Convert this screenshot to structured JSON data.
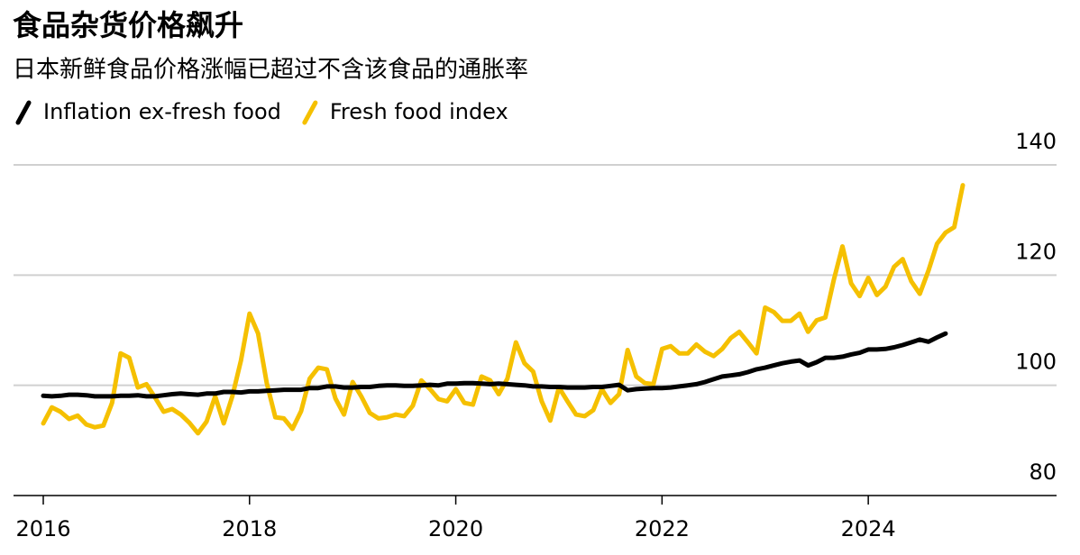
{
  "chart_data": {
    "type": "line",
    "title": "食品杂货价格飙升",
    "subtitle": "日本新鲜食品价格涨幅已超过不含该食品的通胀率",
    "categories": [
      "2016",
      null,
      null,
      null,
      null,
      null,
      null,
      null,
      null,
      null,
      null,
      null,
      null,
      null,
      null,
      null,
      null,
      null,
      null,
      null,
      null,
      null,
      null,
      null,
      "2018",
      null,
      null,
      null,
      null,
      null,
      null,
      null,
      null,
      null,
      null,
      null,
      null,
      null,
      null,
      null,
      null,
      null,
      null,
      null,
      null,
      null,
      null,
      null,
      "2020",
      null,
      null,
      null,
      null,
      null,
      null,
      null,
      null,
      null,
      null,
      null,
      null,
      null,
      null,
      null,
      null,
      null,
      null,
      null,
      null,
      null,
      null,
      null,
      "2022",
      null,
      null,
      null,
      null,
      null,
      null,
      null,
      null,
      null,
      null,
      null,
      null,
      null,
      null,
      null,
      null,
      null,
      null,
      null,
      null,
      null,
      null,
      null,
      "2024",
      null,
      null,
      null,
      null,
      null,
      null,
      null,
      null,
      null,
      null,
      null
    ],
    "series": [
      {
        "name": "Inflation ex-fresh food",
        "color": "#000000",
        "values": [
          98.1,
          98.0,
          98.1,
          98.3,
          98.3,
          98.2,
          98.0,
          98.0,
          98.0,
          98.1,
          98.1,
          98.2,
          98.0,
          98.0,
          98.2,
          98.4,
          98.5,
          98.4,
          98.3,
          98.5,
          98.5,
          98.8,
          98.8,
          98.7,
          98.9,
          98.9,
          99.0,
          99.1,
          99.2,
          99.2,
          99.2,
          99.5,
          99.5,
          99.8,
          99.8,
          99.6,
          99.6,
          99.7,
          99.7,
          99.9,
          100.0,
          100.0,
          99.9,
          99.9,
          100.0,
          100.1,
          100.0,
          100.3,
          100.3,
          100.4,
          100.4,
          100.3,
          100.2,
          100.3,
          100.2,
          100.1,
          100.0,
          99.8,
          99.8,
          99.7,
          99.7,
          99.6,
          99.6,
          99.6,
          99.7,
          99.7,
          99.9,
          100.1,
          99.1,
          99.3,
          99.4,
          99.5,
          99.5,
          99.6,
          99.8,
          100.0,
          100.2,
          100.6,
          101.1,
          101.6,
          101.8,
          102.0,
          102.4,
          102.9,
          103.2,
          103.6,
          104.0,
          104.3,
          104.5,
          103.6,
          104.2,
          105.0,
          105.0,
          105.2,
          105.6,
          105.9,
          106.5,
          106.5,
          106.6,
          106.9,
          107.3,
          107.8,
          108.3,
          107.9,
          108.7,
          109.4,
          null,
          null
        ]
      },
      {
        "name": "Fresh food index",
        "color": "#f5c000",
        "values": [
          93.1,
          96.0,
          95.2,
          93.9,
          94.5,
          92.9,
          92.4,
          92.7,
          96.8,
          105.8,
          105.0,
          99.6,
          100.2,
          97.8,
          95.2,
          95.7,
          94.7,
          93.2,
          91.3,
          93.4,
          98.0,
          93.1,
          98.0,
          104.5,
          113.0,
          109.4,
          100.4,
          94.2,
          94.0,
          92.1,
          95.3,
          101.2,
          103.2,
          102.9,
          97.6,
          94.7,
          100.6,
          98.0,
          95.0,
          94.0,
          94.2,
          94.7,
          94.4,
          96.3,
          100.9,
          99.3,
          97.5,
          97.1,
          99.3,
          96.8,
          96.5,
          101.6,
          100.9,
          98.4,
          101.2,
          107.8,
          104.0,
          102.5,
          97.1,
          93.6,
          99.6,
          97.1,
          94.7,
          94.4,
          95.5,
          99.3,
          96.8,
          98.4,
          106.4,
          101.6,
          100.4,
          100.2,
          106.6,
          107.1,
          105.8,
          105.8,
          107.4,
          106.1,
          105.3,
          106.6,
          108.6,
          109.7,
          107.8,
          105.8,
          114.1,
          113.3,
          111.7,
          111.7,
          113.0,
          109.7,
          111.8,
          112.3,
          119.2,
          125.2,
          118.5,
          116.2,
          119.5,
          116.4,
          117.9,
          121.5,
          122.9,
          118.9,
          116.6,
          120.8,
          125.7,
          127.7,
          128.7,
          136.3
        ]
      }
    ],
    "ylim": [
      80,
      140
    ],
    "yticks": [
      80,
      100,
      120,
      140
    ],
    "grid": true
  }
}
